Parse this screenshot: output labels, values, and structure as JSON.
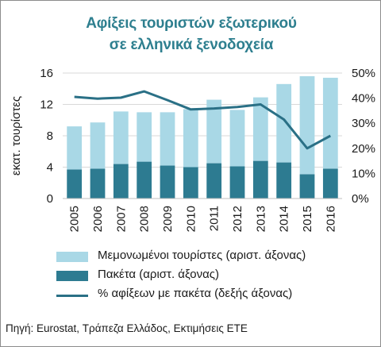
{
  "chart": {
    "title_line1": "Αφίξεις τουριστών εξωτερικού",
    "title_line2": "σε ελληνικά ξενοδοχεία",
    "source": "Πηγή: Eurostat, Τράπεζα Ελλάδος, Εκτιμήσεις ΕΤΕ"
  },
  "colors": {
    "individual": "#a9d8e6",
    "packages": "#2d7b91",
    "share_line": "#2a7086",
    "title": "#2e7f8f",
    "grid": "#d9d9d9"
  },
  "chart_data": {
    "type": "bar",
    "stacked": true,
    "title": "Αφίξεις τουριστών εξωτερικού σε ελληνικά ξενοδοχεία",
    "ylabel": "εκατ. τουρίστες",
    "ylim": [
      0,
      16
    ],
    "yticks": [
      "0",
      "4",
      "8",
      "12",
      "16"
    ],
    "y2lim": [
      0,
      50
    ],
    "y2ticks": [
      "0%",
      "10%",
      "20%",
      "30%",
      "40%",
      "50%"
    ],
    "categories": [
      "2005",
      "2006",
      "2007",
      "2008",
      "2009",
      "2010",
      "2011",
      "2012",
      "2013",
      "2014",
      "2015",
      "2016"
    ],
    "series": [
      {
        "name": "Πακέτα (αριστ. άξονας)",
        "kind": "bar",
        "axis": "left",
        "values": [
          3.7,
          3.8,
          4.4,
          4.7,
          4.2,
          4.0,
          4.5,
          4.1,
          4.8,
          4.6,
          3.1,
          3.8
        ]
      },
      {
        "name": "Μεμονωμένοι τουρίστες (αριστ. άξονας)",
        "kind": "bar",
        "axis": "left",
        "values": [
          5.5,
          5.9,
          6.7,
          6.3,
          6.8,
          7.4,
          8.1,
          7.2,
          8.1,
          10.0,
          12.5,
          11.6
        ]
      },
      {
        "name": "% αφίξεων με πακέτα (δεξής άξονας)",
        "kind": "line",
        "axis": "right",
        "values": [
          40.5,
          39.8,
          40.2,
          42.7,
          39.2,
          35.5,
          35.9,
          36.5,
          37.5,
          31.5,
          20.0,
          25.0
        ]
      }
    ],
    "legend_position": "bottom",
    "grid": true
  }
}
